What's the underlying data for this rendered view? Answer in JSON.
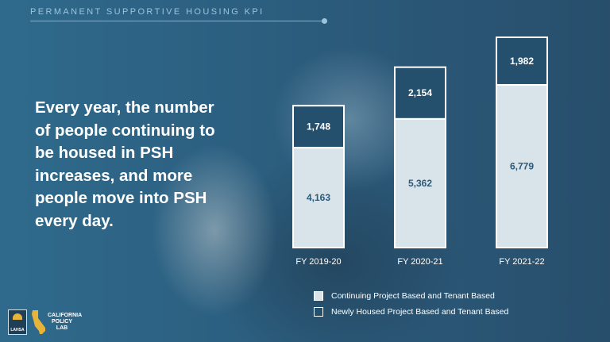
{
  "header": {
    "title": "PERMANENT SUPPORTIVE HOUSING KPI"
  },
  "headline": "Every year, the number of people continuing to be housed in PSH increases, and more people move into PSH every day.",
  "colors": {
    "continuing_fill": "#d9e3ea",
    "newly_fill": "#24506d",
    "bar_border": "#ffffff",
    "continuing_label": "#2c5a78",
    "newly_label": "#ffffff"
  },
  "chart_data": {
    "type": "bar",
    "stacked": true,
    "categories": [
      "FY 2019-20",
      "FY 2020-21",
      "FY 2021-22"
    ],
    "series": [
      {
        "name": "Continuing Project Based and Tenant Based",
        "values": [
          4163,
          5362,
          6779
        ]
      },
      {
        "name": "Newly Housed Project Based and Tenant Based",
        "values": [
          1748,
          2154,
          1982
        ]
      }
    ],
    "data_labels": [
      [
        "4,163",
        "5,362",
        "6,779"
      ],
      [
        "1,748",
        "2,154",
        "1,982"
      ]
    ],
    "grid": false,
    "legend_position": "bottom-right"
  },
  "logos": {
    "lahsa_text": "LAHSA",
    "cpl_line1": "CALIFORNIA",
    "cpl_line2": "POLICY",
    "cpl_line3": "LAB"
  }
}
